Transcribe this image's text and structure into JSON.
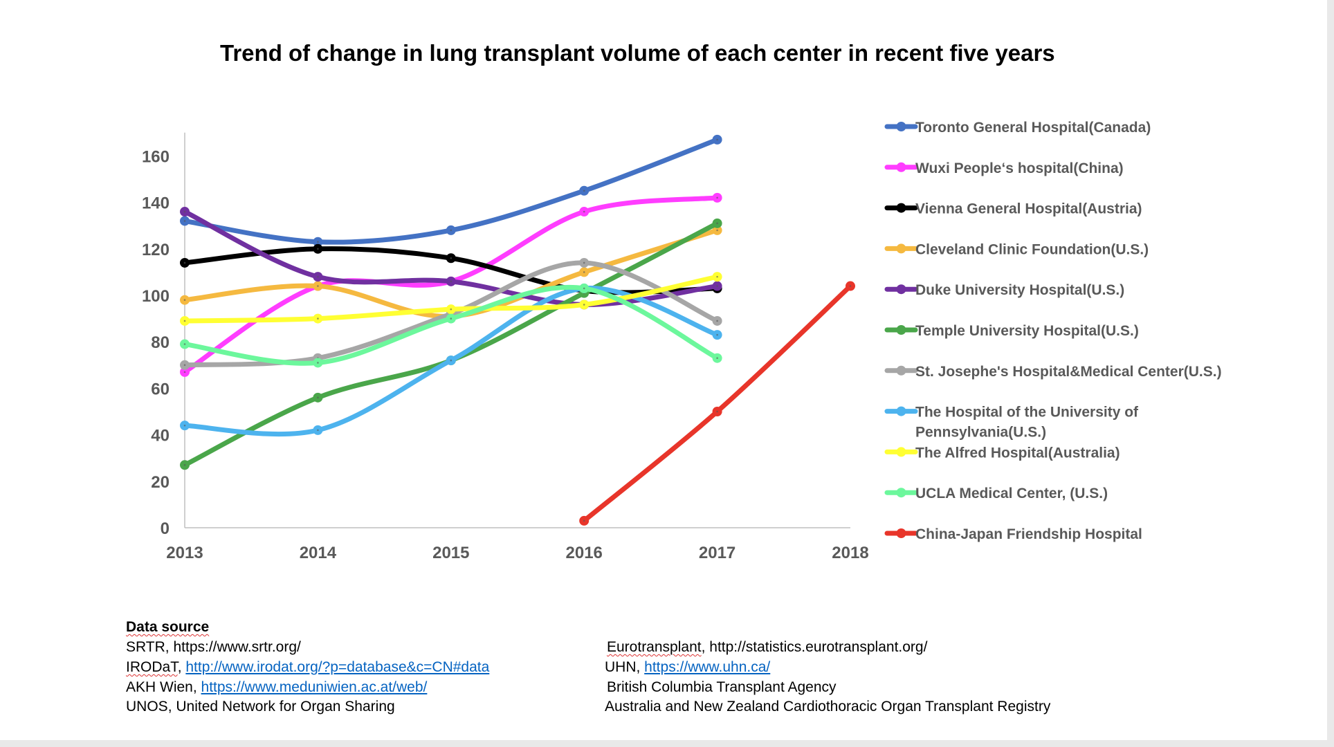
{
  "chart_data": {
    "type": "line",
    "title": "Trend of change in lung transplant volume of each center in recent five years",
    "xlabel": "",
    "ylabel": "",
    "categories": [
      "2013",
      "2014",
      "2015",
      "2016",
      "2017",
      "2018"
    ],
    "y_ticks": [
      0,
      20,
      40,
      60,
      80,
      100,
      120,
      140,
      160
    ],
    "ylim": [
      0,
      170
    ],
    "grid": false,
    "legend_position": "right",
    "smooth": true,
    "series": [
      {
        "name": "Toronto General Hospital(Canada)",
        "color": "#4472c4",
        "values": [
          132,
          123,
          128,
          145,
          167,
          null
        ]
      },
      {
        "name": "Wuxi People‘s hospital(China)",
        "color": "#ff3dff",
        "values": [
          67,
          104,
          106,
          136,
          142,
          null
        ]
      },
      {
        "name": "Vienna General Hospital(Austria)",
        "color": "#000000",
        "values": [
          114,
          120,
          116,
          102,
          103,
          null
        ]
      },
      {
        "name": "Cleveland Clinic Foundation(U.S.)",
        "color": "#f5b940",
        "values": [
          98,
          104,
          91,
          110,
          128,
          null
        ]
      },
      {
        "name": "Duke University Hospital(U.S.)",
        "color": "#7030a0",
        "values": [
          136,
          108,
          106,
          96,
          104,
          null
        ]
      },
      {
        "name": "Temple University Hospital(U.S.)",
        "color": "#4aa64a",
        "values": [
          27,
          56,
          72,
          101,
          131,
          null
        ]
      },
      {
        "name": "St. Josephe's Hospital&Medical Center(U.S.)",
        "color": "#a6a6a6",
        "values": [
          70,
          73,
          92,
          114,
          89,
          null
        ]
      },
      {
        "name": "The Hospital of the University of Pennsylvania(U.S.)",
        "color": "#4db3ee",
        "values": [
          44,
          42,
          72,
          103,
          83,
          null
        ]
      },
      {
        "name": "The Alfred Hospital(Australia)",
        "color": "#ffff33",
        "values": [
          89,
          90,
          94,
          96,
          108,
          null
        ]
      },
      {
        "name": "UCLA Medical Center, (U.S.)",
        "color": "#6cf79c",
        "values": [
          79,
          71,
          90,
          103,
          73,
          null
        ]
      },
      {
        "name": "China-Japan Friendship Hospital",
        "color": "#e8352a",
        "values": [
          null,
          null,
          null,
          3,
          50,
          104
        ]
      }
    ]
  },
  "legend": {
    "labels": [
      [
        "Toronto General Hospital(Canada)"
      ],
      [
        "Wuxi People‘s hospital(China)"
      ],
      [
        "Vienna General Hospital(Austria)"
      ],
      [
        "Cleveland Clinic Foundation(U.S.)"
      ],
      [
        "Duke University Hospital(U.S.)"
      ],
      [
        "Temple University Hospital(U.S.)"
      ],
      [
        "St. Josephe's Hospital&Medical Center(U.S.)"
      ],
      [
        "The Hospital of the University of",
        "Pennsylvania(U.S.)"
      ],
      [
        "The Alfred Hospital(Australia)"
      ],
      [
        "UCLA Medical Center, (U.S.)"
      ],
      [
        "China-Japan Friendship Hospital"
      ]
    ]
  },
  "sources": {
    "heading": "Data source",
    "left": [
      {
        "name": "SRTR",
        "sep": ", ",
        "link": "https://www.srtr.org/",
        "is_link": false
      },
      {
        "name": "IRODaT",
        "sep": ", ",
        "link": "http://www.irodat.org/?p=database&c=CN#data",
        "is_link": true
      },
      {
        "name": "AKH Wien",
        "sep": ", ",
        "link": "https://www.meduniwien.ac.at/web/",
        "is_link": true
      },
      {
        "name": "UNOS",
        "sep": ", ",
        "link": "United Network for Organ Sharing",
        "is_link": false
      }
    ],
    "right": [
      {
        "name": "Eurotransplant",
        "sep": ", ",
        "link": "http://statistics.eurotransplant.org/",
        "is_link": false
      },
      {
        "name": "UHN",
        "sep": ", ",
        "link": "https://www.uhn.ca/",
        "is_link": true
      },
      {
        "name": "British Columbia Transplant Agency",
        "sep": "",
        "link": "",
        "is_link": false
      },
      {
        "name": "Australia and New Zealand Cardiothoracic Organ Transplant Registry",
        "sep": "",
        "link": "",
        "is_link": false
      }
    ]
  }
}
